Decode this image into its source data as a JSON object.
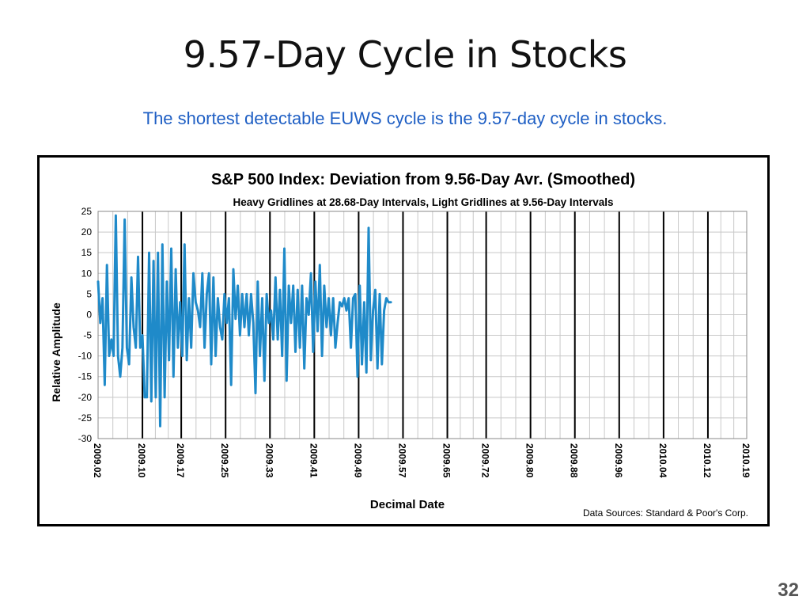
{
  "slide": {
    "title": "9.57-Day Cycle in Stocks",
    "subtitle": "The shortest detectable EUWS cycle is the 9.57-day cycle in stocks.",
    "page_number": "32"
  },
  "chart_data": {
    "type": "line",
    "title": "S&P 500 Index:  Deviation from 9.56-Day Avr. (Smoothed)",
    "subtitle": "Heavy Gridlines at 28.68-Day Intervals,  Light Gridlines at 9.56-Day Intervals",
    "xlabel": "Decimal Date",
    "ylabel": "Relative Amplitude",
    "source_note": "Data Sources:  Standard & Poor's Corp.",
    "xlim": [
      2009.02,
      2010.19
    ],
    "ylim": [
      -30,
      25
    ],
    "yticks": [
      25,
      20,
      15,
      10,
      5,
      0,
      -5,
      -10,
      -15,
      -20,
      -25,
      -30
    ],
    "xtick_labels": [
      "2009.02",
      "2009.10",
      "2009.17",
      "2009.25",
      "2009.33",
      "2009.41",
      "2009.49",
      "2009.57",
      "2009.65",
      "2009.72",
      "2009.80",
      "2009.88",
      "2009.96",
      "2010.04",
      "2010.12",
      "2010.19"
    ],
    "heavy_gridlines": [
      "2009.10",
      "2009.17",
      "2009.25",
      "2009.33",
      "2009.41",
      "2009.49",
      "2009.57",
      "2009.65",
      "2009.72",
      "2009.80",
      "2009.88",
      "2009.96",
      "2010.04",
      "2010.12"
    ],
    "light_gridlines_per_heavy_interval": 3,
    "grid": true,
    "line_color": "#1f8ac9",
    "series": [
      {
        "points": [
          [
            2009.02,
            8
          ],
          [
            2009.024,
            -2
          ],
          [
            2009.028,
            4
          ],
          [
            2009.032,
            -17
          ],
          [
            2009.036,
            12
          ],
          [
            2009.04,
            -10
          ],
          [
            2009.044,
            -6
          ],
          [
            2009.048,
            -10
          ],
          [
            2009.052,
            24
          ],
          [
            2009.056,
            -10
          ],
          [
            2009.06,
            -15
          ],
          [
            2009.064,
            -8
          ],
          [
            2009.068,
            23
          ],
          [
            2009.072,
            -8
          ],
          [
            2009.076,
            -12
          ],
          [
            2009.08,
            9
          ],
          [
            2009.084,
            -3
          ],
          [
            2009.088,
            -8
          ],
          [
            2009.092,
            14
          ],
          [
            2009.096,
            -8
          ],
          [
            2009.1,
            -5
          ],
          [
            2009.104,
            -20
          ],
          [
            2009.108,
            -20
          ],
          [
            2009.112,
            15
          ],
          [
            2009.116,
            -21
          ],
          [
            2009.12,
            13
          ],
          [
            2009.124,
            -20
          ],
          [
            2009.128,
            15
          ],
          [
            2009.132,
            -27
          ],
          [
            2009.136,
            17
          ],
          [
            2009.14,
            -20
          ],
          [
            2009.144,
            8
          ],
          [
            2009.148,
            -11
          ],
          [
            2009.152,
            16
          ],
          [
            2009.156,
            -15
          ],
          [
            2009.16,
            11
          ],
          [
            2009.164,
            -8
          ],
          [
            2009.168,
            3
          ],
          [
            2009.172,
            -10
          ],
          [
            2009.176,
            17
          ],
          [
            2009.18,
            -11
          ],
          [
            2009.184,
            4
          ],
          [
            2009.188,
            -8
          ],
          [
            2009.192,
            10
          ],
          [
            2009.196,
            3
          ],
          [
            2009.2,
            1
          ],
          [
            2009.204,
            -3
          ],
          [
            2009.208,
            10
          ],
          [
            2009.212,
            -8
          ],
          [
            2009.216,
            5
          ],
          [
            2009.22,
            10
          ],
          [
            2009.224,
            -12
          ],
          [
            2009.228,
            9
          ],
          [
            2009.232,
            -10
          ],
          [
            2009.236,
            4
          ],
          [
            2009.24,
            -3
          ],
          [
            2009.244,
            -6
          ],
          [
            2009.248,
            5
          ],
          [
            2009.252,
            -2
          ],
          [
            2009.256,
            4
          ],
          [
            2009.26,
            -17
          ],
          [
            2009.264,
            11
          ],
          [
            2009.268,
            -1
          ],
          [
            2009.272,
            7
          ],
          [
            2009.276,
            -5
          ],
          [
            2009.28,
            5
          ],
          [
            2009.284,
            -3
          ],
          [
            2009.288,
            5
          ],
          [
            2009.292,
            -5
          ],
          [
            2009.296,
            5
          ],
          [
            2009.3,
            -2
          ],
          [
            2009.304,
            -19
          ],
          [
            2009.308,
            8
          ],
          [
            2009.312,
            -10
          ],
          [
            2009.316,
            4
          ],
          [
            2009.32,
            -16
          ],
          [
            2009.324,
            5
          ],
          [
            2009.328,
            -2
          ],
          [
            2009.332,
            1
          ],
          [
            2009.336,
            -6
          ],
          [
            2009.34,
            9
          ],
          [
            2009.344,
            -6
          ],
          [
            2009.348,
            6
          ],
          [
            2009.352,
            -10
          ],
          [
            2009.356,
            16
          ],
          [
            2009.36,
            -16
          ],
          [
            2009.364,
            7
          ],
          [
            2009.368,
            -2
          ],
          [
            2009.372,
            7
          ],
          [
            2009.376,
            -9
          ],
          [
            2009.38,
            6
          ],
          [
            2009.384,
            -8
          ],
          [
            2009.388,
            7
          ],
          [
            2009.392,
            -13
          ],
          [
            2009.396,
            4
          ],
          [
            2009.4,
            0
          ],
          [
            2009.404,
            10
          ],
          [
            2009.408,
            -9
          ],
          [
            2009.412,
            8
          ],
          [
            2009.416,
            -4
          ],
          [
            2009.42,
            12
          ],
          [
            2009.424,
            -10
          ],
          [
            2009.428,
            7
          ],
          [
            2009.432,
            -3
          ],
          [
            2009.436,
            4
          ],
          [
            2009.44,
            -5
          ],
          [
            2009.444,
            4
          ],
          [
            2009.448,
            -8
          ],
          [
            2009.452,
            -2
          ],
          [
            2009.456,
            3
          ],
          [
            2009.46,
            2
          ],
          [
            2009.464,
            4
          ],
          [
            2009.468,
            1
          ],
          [
            2009.472,
            4
          ],
          [
            2009.476,
            -8
          ],
          [
            2009.48,
            4
          ],
          [
            2009.484,
            5
          ],
          [
            2009.488,
            -15
          ],
          [
            2009.492,
            7
          ],
          [
            2009.496,
            -12
          ],
          [
            2009.5,
            3
          ],
          [
            2009.504,
            -14
          ],
          [
            2009.508,
            21
          ],
          [
            2009.512,
            -11
          ],
          [
            2009.516,
            1
          ],
          [
            2009.52,
            6
          ],
          [
            2009.524,
            -13
          ],
          [
            2009.528,
            5
          ],
          [
            2009.532,
            -12
          ],
          [
            2009.536,
            1
          ],
          [
            2009.54,
            4
          ],
          [
            2009.544,
            3
          ],
          [
            2009.548,
            3
          ]
        ]
      }
    ]
  }
}
